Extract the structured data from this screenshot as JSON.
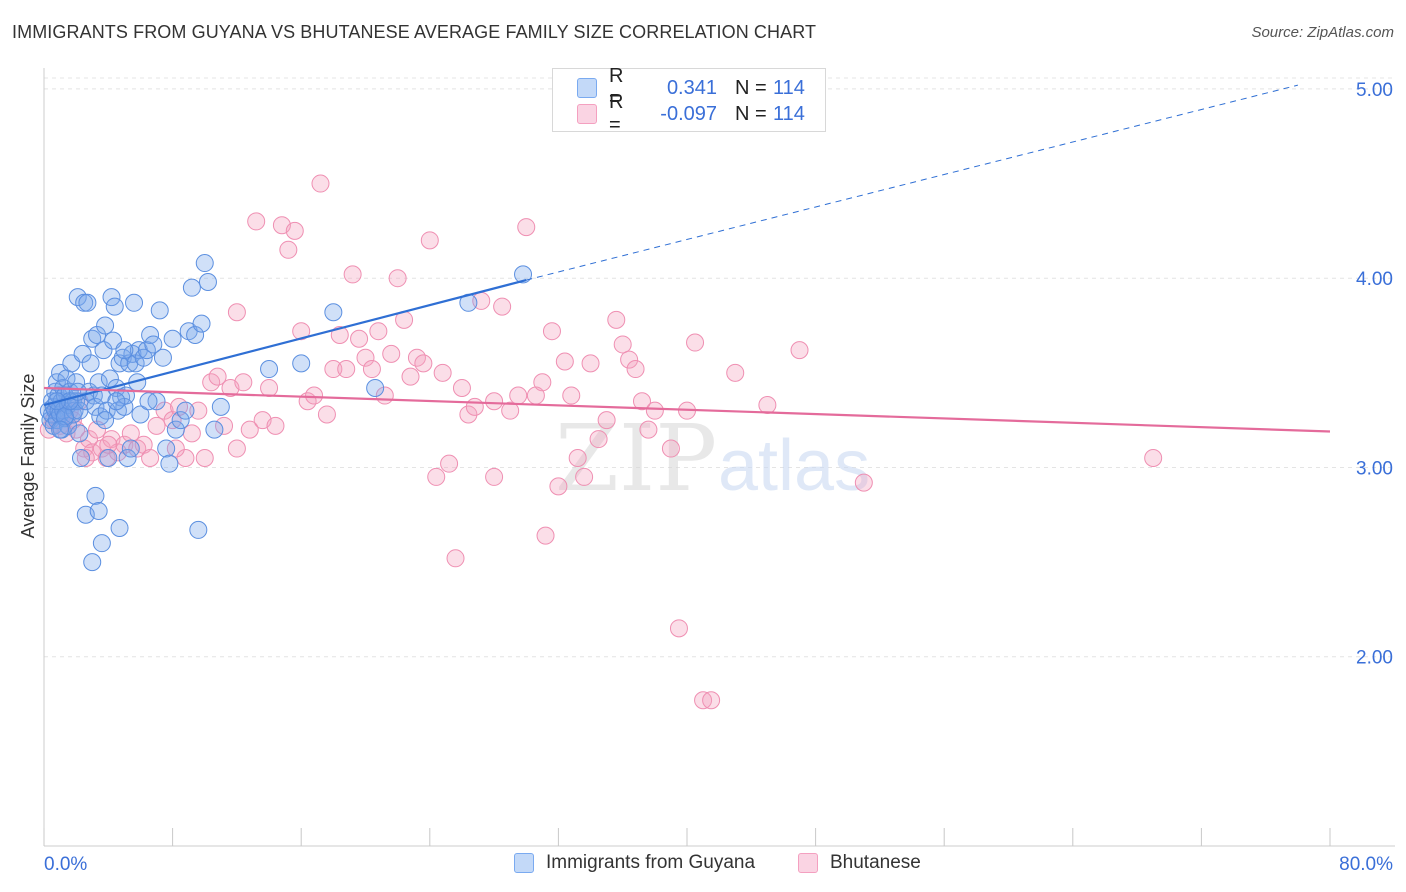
{
  "title": "IMMIGRANTS FROM GUYANA VS BHUTANESE AVERAGE FAMILY SIZE CORRELATION CHART",
  "source": "Source: ZipAtlas.com",
  "watermark": {
    "zip": "ZIP",
    "atlas": "atlas"
  },
  "legend": {
    "rows": [
      {
        "r_label": "R =",
        "r_value": "0.341",
        "n_label": "N =",
        "n_value": "114",
        "color": "#7aaaf0"
      },
      {
        "r_label": "R =",
        "r_value": "-0.097",
        "n_label": "N =",
        "n_value": "114",
        "color": "#f4a0c0"
      }
    ]
  },
  "bottom_legend": [
    {
      "label": "Immigrants from Guyana",
      "color": "#7aaaf0"
    },
    {
      "label": "Bhutanese",
      "color": "#f4a0c0"
    }
  ],
  "colors": {
    "blue_fill": "rgba(120,165,235,0.35)",
    "blue_stroke": "#5b8fe0",
    "blue_line": "#2f6fd4",
    "pink_fill": "rgba(244,160,190,0.35)",
    "pink_stroke": "#ef8fb2",
    "pink_line": "#e46b9b",
    "tick_text": "#3a6fd8",
    "grid": "#e4e4e4"
  },
  "chart_data": {
    "type": "scatter",
    "ylabel": "Average Family Size",
    "xlabel": "",
    "x_tick_labels": {
      "min": "0.0%",
      "max": "80.0%"
    },
    "y_tick_labels": [
      "2.00",
      "3.00",
      "4.00",
      "5.00"
    ],
    "xlim": [
      0,
      80
    ],
    "ylim": [
      1.0,
      5.1
    ],
    "series": [
      {
        "name": "Immigrants from Guyana",
        "r": 0.341,
        "n": 114,
        "trend": {
          "x0": 0.0,
          "y0": 3.33,
          "x1": 30.0,
          "y1": 3.99,
          "dash_to_x": 78.0,
          "dash_to_y": 5.02
        },
        "points": [
          [
            0.3,
            3.3
          ],
          [
            0.4,
            3.25
          ],
          [
            0.5,
            3.35
          ],
          [
            0.5,
            3.28
          ],
          [
            0.6,
            3.32
          ],
          [
            0.6,
            3.22
          ],
          [
            0.7,
            3.4
          ],
          [
            0.7,
            3.3
          ],
          [
            0.8,
            3.45
          ],
          [
            0.8,
            3.25
          ],
          [
            0.9,
            3.38
          ],
          [
            0.9,
            3.3
          ],
          [
            1.0,
            3.5
          ],
          [
            1.0,
            3.28
          ],
          [
            1.1,
            3.35
          ],
          [
            1.1,
            3.2
          ],
          [
            1.2,
            3.42
          ],
          [
            1.2,
            3.3
          ],
          [
            1.3,
            3.38
          ],
          [
            1.3,
            3.26
          ],
          [
            1.4,
            3.47
          ],
          [
            1.5,
            3.33
          ],
          [
            1.5,
            3.22
          ],
          [
            1.6,
            3.4
          ],
          [
            1.7,
            3.55
          ],
          [
            1.8,
            3.35
          ],
          [
            1.8,
            3.28
          ],
          [
            1.9,
            3.3
          ],
          [
            2.0,
            3.45
          ],
          [
            2.0,
            3.35
          ],
          [
            2.1,
            3.9
          ],
          [
            2.2,
            3.3
          ],
          [
            2.2,
            3.18
          ],
          [
            2.3,
            3.05
          ],
          [
            2.4,
            3.6
          ],
          [
            2.5,
            3.87
          ],
          [
            2.6,
            3.35
          ],
          [
            2.7,
            3.87
          ],
          [
            2.8,
            3.4
          ],
          [
            2.9,
            3.55
          ],
          [
            3.0,
            3.68
          ],
          [
            3.1,
            3.38
          ],
          [
            3.2,
            3.32
          ],
          [
            3.3,
            3.7
          ],
          [
            3.4,
            3.45
          ],
          [
            3.5,
            3.27
          ],
          [
            3.6,
            3.38
          ],
          [
            3.7,
            3.62
          ],
          [
            3.8,
            3.75
          ],
          [
            3.9,
            3.3
          ],
          [
            4.0,
            3.05
          ],
          [
            4.1,
            3.47
          ],
          [
            4.2,
            3.9
          ],
          [
            4.3,
            3.67
          ],
          [
            4.4,
            3.85
          ],
          [
            4.5,
            3.42
          ],
          [
            4.6,
            3.3
          ],
          [
            4.7,
            3.55
          ],
          [
            4.8,
            3.37
          ],
          [
            4.9,
            3.58
          ],
          [
            5.0,
            3.32
          ],
          [
            5.1,
            3.38
          ],
          [
            5.2,
            3.05
          ],
          [
            5.3,
            3.55
          ],
          [
            5.4,
            3.1
          ],
          [
            5.5,
            3.6
          ],
          [
            5.6,
            3.87
          ],
          [
            5.7,
            3.55
          ],
          [
            5.8,
            3.45
          ],
          [
            5.9,
            3.62
          ],
          [
            6.0,
            3.28
          ],
          [
            6.2,
            3.58
          ],
          [
            6.4,
            3.62
          ],
          [
            6.6,
            3.7
          ],
          [
            6.8,
            3.65
          ],
          [
            7.0,
            3.35
          ],
          [
            7.2,
            3.83
          ],
          [
            7.4,
            3.58
          ],
          [
            7.6,
            3.1
          ],
          [
            7.8,
            3.02
          ],
          [
            8.0,
            3.68
          ],
          [
            8.2,
            3.2
          ],
          [
            8.5,
            3.25
          ],
          [
            8.8,
            3.3
          ],
          [
            9.0,
            3.72
          ],
          [
            9.2,
            3.95
          ],
          [
            9.4,
            3.7
          ],
          [
            9.6,
            2.67
          ],
          [
            9.8,
            3.76
          ],
          [
            10.0,
            4.08
          ],
          [
            10.2,
            3.98
          ],
          [
            10.6,
            3.2
          ],
          [
            11.0,
            3.32
          ],
          [
            1.3,
            3.27
          ],
          [
            1.6,
            3.35
          ],
          [
            2.1,
            3.4
          ],
          [
            2.6,
            2.75
          ],
          [
            3.0,
            2.5
          ],
          [
            3.2,
            2.85
          ],
          [
            3.4,
            2.77
          ],
          [
            3.6,
            2.6
          ],
          [
            3.8,
            3.25
          ],
          [
            4.5,
            3.35
          ],
          [
            5.0,
            3.62
          ],
          [
            4.7,
            2.68
          ],
          [
            6.5,
            3.35
          ],
          [
            14.0,
            3.52
          ],
          [
            16.0,
            3.55
          ],
          [
            18.0,
            3.82
          ],
          [
            20.6,
            3.42
          ],
          [
            26.4,
            3.87
          ],
          [
            29.8,
            4.02
          ],
          [
            1.0,
            3.2
          ],
          [
            0.8,
            3.35
          ]
        ]
      },
      {
        "name": "Bhutanese",
        "r": -0.097,
        "n": 114,
        "trend": {
          "x0": 0.0,
          "y0": 3.42,
          "x1": 80.0,
          "y1": 3.19
        },
        "points": [
          [
            0.3,
            3.2
          ],
          [
            0.6,
            3.25
          ],
          [
            0.8,
            3.3
          ],
          [
            1.0,
            3.22
          ],
          [
            1.2,
            3.28
          ],
          [
            1.4,
            3.18
          ],
          [
            1.6,
            3.3
          ],
          [
            1.8,
            3.25
          ],
          [
            2.0,
            3.2
          ],
          [
            2.2,
            3.35
          ],
          [
            2.5,
            3.1
          ],
          [
            2.8,
            3.15
          ],
          [
            3.0,
            3.08
          ],
          [
            3.3,
            3.2
          ],
          [
            3.6,
            3.1
          ],
          [
            3.9,
            3.05
          ],
          [
            4.2,
            3.15
          ],
          [
            4.6,
            3.08
          ],
          [
            5.0,
            3.12
          ],
          [
            5.4,
            3.18
          ],
          [
            5.8,
            3.1
          ],
          [
            6.2,
            3.12
          ],
          [
            6.6,
            3.05
          ],
          [
            7.0,
            3.22
          ],
          [
            7.5,
            3.3
          ],
          [
            8.0,
            3.25
          ],
          [
            8.4,
            3.32
          ],
          [
            8.8,
            3.05
          ],
          [
            9.2,
            3.18
          ],
          [
            9.6,
            3.3
          ],
          [
            10.0,
            3.05
          ],
          [
            10.4,
            3.45
          ],
          [
            10.8,
            3.48
          ],
          [
            11.2,
            3.22
          ],
          [
            11.6,
            3.42
          ],
          [
            12.0,
            3.1
          ],
          [
            12.4,
            3.45
          ],
          [
            12.8,
            3.2
          ],
          [
            13.2,
            4.3
          ],
          [
            13.6,
            3.25
          ],
          [
            14.0,
            3.42
          ],
          [
            14.4,
            3.22
          ],
          [
            14.8,
            4.28
          ],
          [
            15.2,
            4.15
          ],
          [
            15.6,
            4.25
          ],
          [
            16.0,
            3.72
          ],
          [
            16.4,
            3.35
          ],
          [
            16.8,
            3.38
          ],
          [
            17.2,
            4.5
          ],
          [
            17.6,
            3.28
          ],
          [
            18.0,
            3.52
          ],
          [
            18.4,
            3.7
          ],
          [
            18.8,
            3.52
          ],
          [
            19.2,
            4.02
          ],
          [
            19.6,
            3.68
          ],
          [
            20.0,
            3.58
          ],
          [
            20.4,
            3.52
          ],
          [
            20.8,
            3.72
          ],
          [
            21.2,
            3.38
          ],
          [
            21.6,
            3.6
          ],
          [
            22.0,
            4.0
          ],
          [
            22.4,
            3.78
          ],
          [
            22.8,
            3.48
          ],
          [
            23.2,
            3.58
          ],
          [
            23.6,
            3.55
          ],
          [
            24.0,
            4.2
          ],
          [
            24.4,
            2.95
          ],
          [
            24.8,
            3.5
          ],
          [
            25.2,
            3.02
          ],
          [
            25.6,
            2.52
          ],
          [
            26.0,
            3.42
          ],
          [
            26.4,
            3.28
          ],
          [
            26.8,
            3.32
          ],
          [
            27.2,
            3.88
          ],
          [
            28.0,
            2.95
          ],
          [
            28.5,
            3.85
          ],
          [
            29.0,
            3.3
          ],
          [
            29.5,
            3.38
          ],
          [
            30.0,
            4.27
          ],
          [
            30.6,
            3.38
          ],
          [
            31.2,
            2.64
          ],
          [
            31.6,
            3.72
          ],
          [
            32.0,
            2.9
          ],
          [
            32.4,
            3.56
          ],
          [
            32.8,
            3.38
          ],
          [
            33.2,
            3.05
          ],
          [
            33.6,
            2.95
          ],
          [
            34.0,
            3.55
          ],
          [
            34.5,
            3.15
          ],
          [
            35.0,
            3.25
          ],
          [
            35.6,
            3.78
          ],
          [
            36.0,
            3.65
          ],
          [
            36.4,
            3.57
          ],
          [
            36.8,
            3.52
          ],
          [
            37.2,
            3.35
          ],
          [
            37.6,
            3.2
          ],
          [
            38.0,
            3.3
          ],
          [
            39.0,
            3.1
          ],
          [
            39.5,
            2.15
          ],
          [
            40.0,
            3.3
          ],
          [
            40.5,
            3.66
          ],
          [
            41.0,
            1.77
          ],
          [
            41.5,
            1.77
          ],
          [
            43.0,
            3.5
          ],
          [
            45.0,
            3.33
          ],
          [
            47.0,
            3.62
          ],
          [
            51.0,
            2.92
          ],
          [
            69.0,
            3.05
          ],
          [
            28.0,
            3.35
          ],
          [
            31.0,
            3.45
          ],
          [
            12.0,
            3.82
          ],
          [
            8.2,
            3.1
          ],
          [
            4.0,
            3.12
          ],
          [
            2.6,
            3.05
          ]
        ]
      }
    ]
  }
}
